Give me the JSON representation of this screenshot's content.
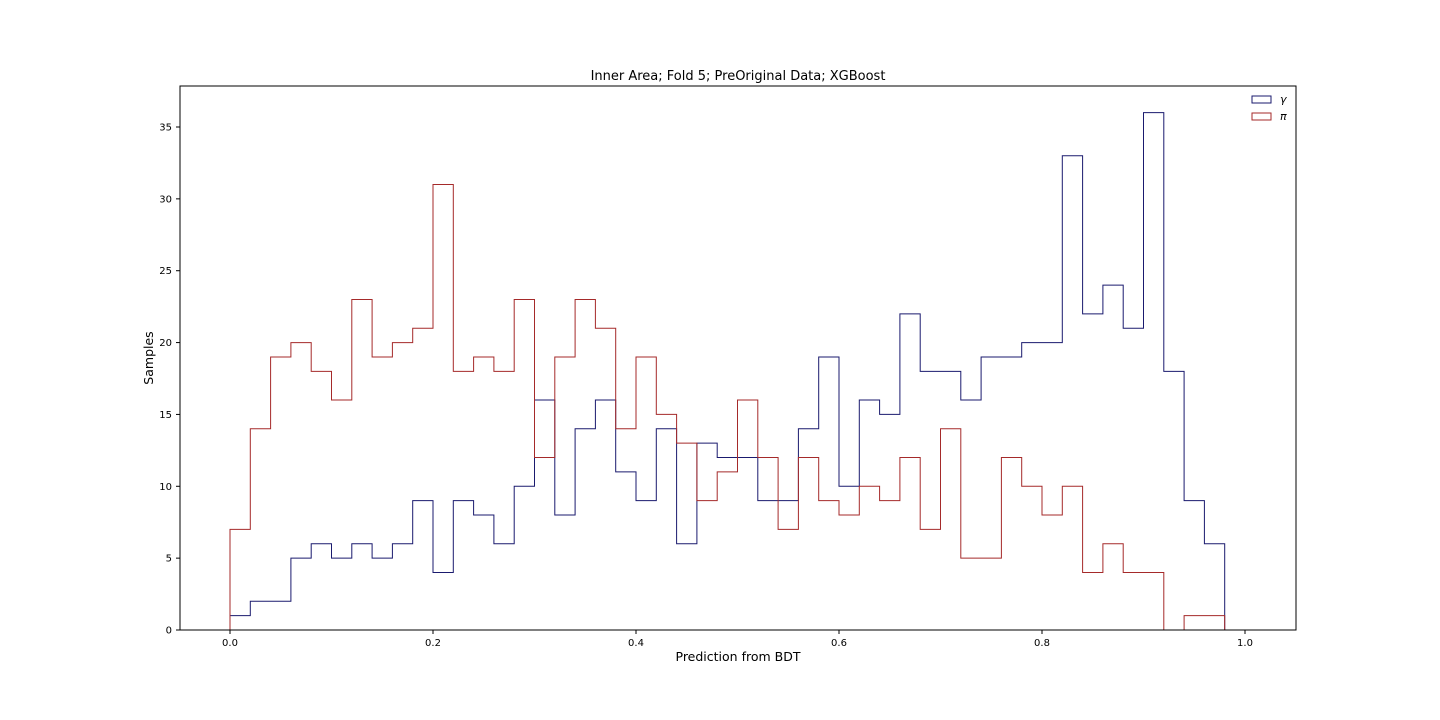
{
  "chart_data": {
    "type": "histogram",
    "title": "Inner Area; Fold 5; PreOriginal Data; XGBoost",
    "xlabel": "Prediction from BDT",
    "ylabel": "Samples",
    "xlim": [
      -0.05,
      1.05
    ],
    "ylim": [
      0,
      38
    ],
    "grid": false,
    "legend_position": "top-right",
    "x_ticks": [
      "0.0",
      "0.2",
      "0.4",
      "0.6",
      "0.8",
      "1.0"
    ],
    "y_ticks": [
      "0",
      "5",
      "10",
      "15",
      "20",
      "25",
      "30",
      "35"
    ],
    "bin_edges_start": 0.0,
    "bin_width": 0.02,
    "series": [
      {
        "name": "γ",
        "color": "#1a1a6e",
        "values": [
          1,
          2,
          2,
          5,
          6,
          5,
          6,
          5,
          6,
          9,
          4,
          9,
          8,
          6,
          10,
          16,
          8,
          14,
          16,
          11,
          9,
          14,
          6,
          13,
          12,
          12,
          9,
          9,
          14,
          19,
          10,
          16,
          15,
          22,
          18,
          18,
          16,
          19,
          19,
          20,
          20,
          33,
          22,
          24,
          21,
          36,
          18,
          9,
          6,
          0
        ]
      },
      {
        "name": "π",
        "color": "#a52a2a",
        "values": [
          7,
          14,
          19,
          20,
          18,
          16,
          23,
          19,
          20,
          21,
          31,
          18,
          19,
          18,
          23,
          12,
          19,
          23,
          21,
          14,
          19,
          15,
          13,
          9,
          11,
          16,
          12,
          7,
          12,
          9,
          8,
          10,
          9,
          12,
          7,
          14,
          5,
          5,
          12,
          10,
          8,
          10,
          4,
          6,
          4,
          4,
          0,
          1,
          1,
          0
        ]
      }
    ]
  }
}
